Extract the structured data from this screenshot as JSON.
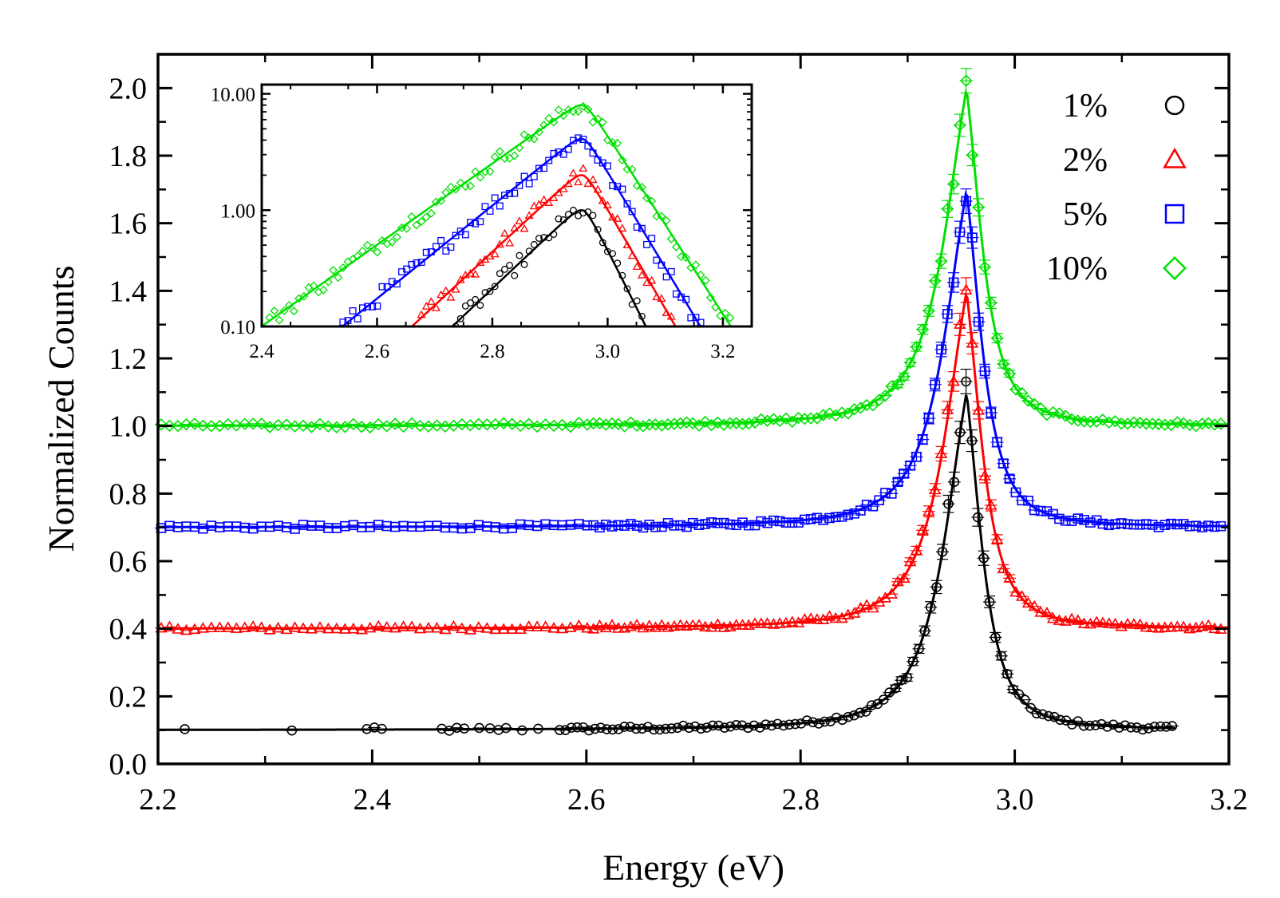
{
  "chart_data": [
    {
      "type": "scatter",
      "panel": "main",
      "title": "",
      "xlabel": "Energy (eV)",
      "ylabel": "Normalized Counts",
      "xlim": [
        2.2,
        3.2
      ],
      "ylim": [
        0.0,
        2.1
      ],
      "xticks": [
        "2.2",
        "2.4",
        "2.6",
        "2.8",
        "3.0",
        "3.2"
      ],
      "yticks": [
        "0.0",
        "0.2",
        "0.4",
        "0.6",
        "0.8",
        "1.0",
        "1.2",
        "1.4",
        "1.6",
        "1.8",
        "2.0"
      ],
      "grid": false,
      "legend_position": "top-right",
      "peak_energy_eV": 2.955,
      "series": [
        {
          "name": "1%",
          "marker": "circle",
          "color": "#000000",
          "baseline": 0.1,
          "peak_height": 1.1,
          "x_min": 2.22,
          "x_max": 3.15
        },
        {
          "name": "2%",
          "marker": "triangle",
          "color": "#ff0000",
          "baseline": 0.4,
          "peak_height": 1.4,
          "x_min": 2.2,
          "x_max": 3.2
        },
        {
          "name": "5%",
          "marker": "square",
          "color": "#0000ff",
          "baseline": 0.7,
          "peak_height": 1.7,
          "x_min": 2.2,
          "x_max": 3.2
        },
        {
          "name": "10%",
          "marker": "diamond",
          "color": "#00e000",
          "baseline": 1.0,
          "peak_height": 2.0,
          "x_min": 2.2,
          "x_max": 3.2
        }
      ]
    },
    {
      "type": "scatter",
      "panel": "inset",
      "yscale": "log",
      "xlim": [
        2.4,
        3.25
      ],
      "ylim": [
        0.1,
        12.0
      ],
      "xticks": [
        "2.4",
        "2.6",
        "2.8",
        "3.0",
        "3.2"
      ],
      "yticks": [
        "0.10",
        "1.00",
        "10.00"
      ],
      "peak_energy_eV": 2.955,
      "series": [
        {
          "name": "1%",
          "marker": "circle",
          "color": "#000000",
          "peak_value": 1.0,
          "left_slope_decades_per_eV": 4.7,
          "right_slope_decades_per_eV": 10.0
        },
        {
          "name": "2%",
          "marker": "triangle",
          "color": "#ff0000",
          "peak_value": 2.0,
          "left_slope_decades_per_eV": 4.6,
          "right_slope_decades_per_eV": 8.6
        },
        {
          "name": "5%",
          "marker": "square",
          "color": "#0000ff",
          "peak_value": 4.1,
          "left_slope_decades_per_eV": 4.0,
          "right_slope_decades_per_eV": 8.3
        },
        {
          "name": "10%",
          "marker": "diamond",
          "color": "#00e000",
          "peak_value": 8.0,
          "left_slope_decades_per_eV": 3.5,
          "right_slope_decades_per_eV": 7.7
        }
      ]
    }
  ]
}
